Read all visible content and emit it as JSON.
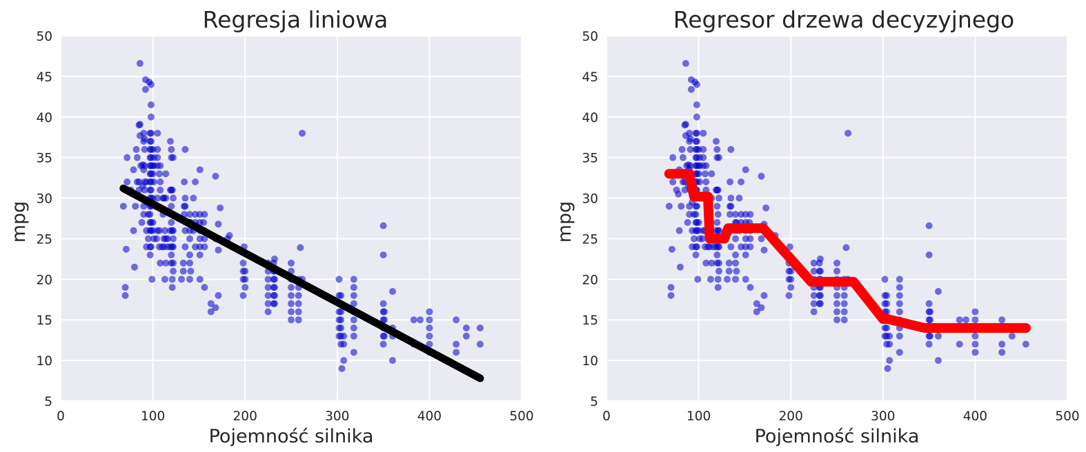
{
  "chart_data": [
    {
      "type": "scatter",
      "title": "Regresja liniowa",
      "xlabel": "Pojemność silnika",
      "ylabel": "mpg",
      "xlim": [
        0,
        500
      ],
      "ylim": [
        5,
        50
      ],
      "xticks": [
        "0",
        "100",
        "200",
        "300",
        "400",
        "500"
      ],
      "yticks": [
        "5",
        "10",
        "15",
        "20",
        "25",
        "30",
        "35",
        "40",
        "45",
        "50"
      ],
      "grid": true,
      "point_color": "#0000cc",
      "fit_color": "#000000",
      "fit": {
        "x": [
          68,
          455
        ],
        "y": [
          31.2,
          7.8
        ]
      }
    },
    {
      "type": "scatter",
      "title": "Regresor drzewa decyzyjnego",
      "xlabel": "Pojemność silnika",
      "ylabel": "mpg",
      "xlim": [
        0,
        500
      ],
      "ylim": [
        5,
        50
      ],
      "xticks": [
        "0",
        "100",
        "200",
        "300",
        "400",
        "500"
      ],
      "yticks": [
        "5",
        "10",
        "15",
        "20",
        "25",
        "30",
        "35",
        "40",
        "45",
        "50"
      ],
      "grid": true,
      "point_color": "#0000cc",
      "fit_color": "#ff0000",
      "fit": {
        "x": [
          68,
          90,
          95,
          110,
          112,
          128,
          132,
          165,
          170,
          222,
          228,
          262,
          268,
          300,
          305,
          345,
          350,
          455
        ],
        "y": [
          33,
          33,
          30.2,
          30.2,
          25,
          25,
          26.3,
          26.3,
          26.3,
          19.7,
          19.7,
          19.7,
          19.7,
          15.1,
          15.1,
          14,
          14,
          14
        ]
      }
    }
  ],
  "points": [
    [
      68,
      29
    ],
    [
      70,
      18
    ],
    [
      70,
      19
    ],
    [
      71,
      23.7
    ],
    [
      72,
      32
    ],
    [
      72,
      35
    ],
    [
      76,
      31
    ],
    [
      78,
      30.5
    ],
    [
      79,
      26
    ],
    [
      79,
      33.5
    ],
    [
      80,
      21.5
    ],
    [
      81,
      29
    ],
    [
      82,
      36
    ],
    [
      83,
      35
    ],
    [
      83,
      32
    ],
    [
      85,
      39
    ],
    [
      85,
      32
    ],
    [
      85,
      31
    ],
    [
      86,
      46.6
    ],
    [
      86,
      39.1
    ],
    [
      86,
      37.7
    ],
    [
      87,
      34
    ],
    [
      88,
      27
    ],
    [
      89,
      31.5
    ],
    [
      89,
      34.1
    ],
    [
      90,
      28
    ],
    [
      90,
      29
    ],
    [
      90,
      33.5
    ],
    [
      90,
      37
    ],
    [
      90,
      38
    ],
    [
      91,
      31
    ],
    [
      91,
      32
    ],
    [
      91,
      34
    ],
    [
      91,
      36
    ],
    [
      91,
      37.3
    ],
    [
      92,
      43.4
    ],
    [
      92,
      44.6
    ],
    [
      93,
      32
    ],
    [
      93,
      29.5
    ],
    [
      93,
      26
    ],
    [
      93,
      24
    ],
    [
      95,
      25
    ],
    [
      95,
      28
    ],
    [
      96,
      44.3
    ],
    [
      97,
      23
    ],
    [
      97,
      24
    ],
    [
      97,
      26
    ],
    [
      97,
      27
    ],
    [
      97,
      28
    ],
    [
      97,
      29
    ],
    [
      97,
      30
    ],
    [
      97,
      31
    ],
    [
      97,
      32
    ],
    [
      97,
      33
    ],
    [
      97,
      34
    ],
    [
      97,
      35
    ],
    [
      97,
      36
    ],
    [
      97,
      37
    ],
    [
      97,
      38
    ],
    [
      98,
      29
    ],
    [
      98,
      30
    ],
    [
      98,
      31
    ],
    [
      98,
      32
    ],
    [
      98,
      33
    ],
    [
      98,
      34
    ],
    [
      98,
      35
    ],
    [
      98,
      36
    ],
    [
      98,
      37
    ],
    [
      98,
      38
    ],
    [
      98,
      40
    ],
    [
      98,
      41.5
    ],
    [
      98,
      44
    ],
    [
      98,
      27
    ],
    [
      98,
      26
    ],
    [
      98,
      24
    ],
    [
      99,
      20
    ],
    [
      100,
      26
    ],
    [
      100,
      27
    ],
    [
      100,
      30
    ],
    [
      100,
      33
    ],
    [
      100,
      34
    ],
    [
      100,
      36
    ],
    [
      101,
      25
    ],
    [
      101,
      32
    ],
    [
      101,
      34
    ],
    [
      101,
      35
    ],
    [
      104,
      25
    ],
    [
      105,
      26
    ],
    [
      105,
      30
    ],
    [
      105,
      34
    ],
    [
      105,
      38
    ],
    [
      105,
      35
    ],
    [
      105,
      36
    ],
    [
      107,
      24
    ],
    [
      107,
      26
    ],
    [
      107,
      33
    ],
    [
      108,
      31
    ],
    [
      108,
      32
    ],
    [
      108,
      34
    ],
    [
      108,
      22
    ],
    [
      110,
      24
    ],
    [
      111,
      30
    ],
    [
      111,
      28
    ],
    [
      112,
      30
    ],
    [
      112,
      25
    ],
    [
      112,
      24
    ],
    [
      113,
      26
    ],
    [
      113,
      20
    ],
    [
      114,
      22
    ],
    [
      114,
      25
    ],
    [
      114,
      30
    ],
    [
      114,
      33
    ],
    [
      116,
      25
    ],
    [
      116,
      24
    ],
    [
      119,
      24
    ],
    [
      119,
      26
    ],
    [
      119,
      31
    ],
    [
      119,
      37
    ],
    [
      120,
      22
    ],
    [
      120,
      23
    ],
    [
      120,
      27
    ],
    [
      120,
      29
    ],
    [
      120,
      31
    ],
    [
      120,
      35
    ],
    [
      120,
      36
    ],
    [
      121,
      19
    ],
    [
      121,
      20
    ],
    [
      121,
      26
    ],
    [
      121,
      24
    ],
    [
      121,
      28
    ],
    [
      121,
      31
    ],
    [
      122,
      25
    ],
    [
      122,
      21
    ],
    [
      122,
      22
    ],
    [
      122,
      24
    ],
    [
      122,
      26
    ],
    [
      122,
      30
    ],
    [
      122,
      35
    ],
    [
      131,
      20
    ],
    [
      133,
      21
    ],
    [
      133,
      22
    ],
    [
      134,
      28
    ],
    [
      134,
      29
    ],
    [
      134,
      32
    ],
    [
      135,
      24
    ],
    [
      135,
      26
    ],
    [
      135,
      29
    ],
    [
      135,
      30
    ],
    [
      135,
      36
    ],
    [
      140,
      23
    ],
    [
      140,
      25
    ],
    [
      140,
      26
    ],
    [
      140,
      27
    ],
    [
      140,
      28
    ],
    [
      140,
      20
    ],
    [
      140,
      22
    ],
    [
      141,
      21
    ],
    [
      141,
      27
    ],
    [
      144,
      30
    ],
    [
      144,
      26
    ],
    [
      146,
      24
    ],
    [
      146,
      27
    ],
    [
      146,
      28
    ],
    [
      146,
      32
    ],
    [
      151,
      20
    ],
    [
      151,
      23
    ],
    [
      151,
      24
    ],
    [
      151,
      25
    ],
    [
      151,
      26
    ],
    [
      151,
      27
    ],
    [
      151,
      28
    ],
    [
      151,
      33.5
    ],
    [
      155,
      27
    ],
    [
      156,
      19
    ],
    [
      156,
      24
    ],
    [
      156,
      25
    ],
    [
      156,
      26
    ],
    [
      156,
      28
    ],
    [
      163,
      17
    ],
    [
      163,
      16
    ],
    [
      168,
      16.5
    ],
    [
      168,
      25
    ],
    [
      168,
      32.7
    ],
    [
      171,
      18
    ],
    [
      171,
      23.6
    ],
    [
      171,
      26.8
    ],
    [
      173,
      28.8
    ],
    [
      181,
      25
    ],
    [
      183,
      25.4
    ],
    [
      198,
      18
    ],
    [
      198,
      20
    ],
    [
      198,
      21
    ],
    [
      198,
      22
    ],
    [
      199,
      24
    ],
    [
      200,
      19
    ],
    [
      200,
      20
    ],
    [
      200,
      21
    ],
    [
      225,
      16
    ],
    [
      225,
      17
    ],
    [
      225,
      18
    ],
    [
      225,
      19
    ],
    [
      225,
      20
    ],
    [
      225,
      21
    ],
    [
      225,
      22
    ],
    [
      231,
      17
    ],
    [
      231,
      18
    ],
    [
      231,
      19
    ],
    [
      231,
      20
    ],
    [
      231,
      21
    ],
    [
      231,
      22
    ],
    [
      232,
      17
    ],
    [
      232,
      18
    ],
    [
      232,
      19
    ],
    [
      232,
      20
    ],
    [
      232,
      21
    ],
    [
      232,
      22.5
    ],
    [
      250,
      15
    ],
    [
      250,
      16
    ],
    [
      250,
      17
    ],
    [
      250,
      18
    ],
    [
      250,
      19
    ],
    [
      250,
      20
    ],
    [
      250,
      21
    ],
    [
      250,
      22
    ],
    [
      258,
      15
    ],
    [
      258,
      16
    ],
    [
      258,
      17
    ],
    [
      258,
      18
    ],
    [
      258,
      19
    ],
    [
      258,
      20
    ],
    [
      260,
      23.9
    ],
    [
      262,
      38
    ],
    [
      262,
      20
    ],
    [
      302,
      13
    ],
    [
      302,
      14
    ],
    [
      302,
      15
    ],
    [
      302,
      16
    ],
    [
      302,
      17
    ],
    [
      302,
      18
    ],
    [
      302,
      20
    ],
    [
      304,
      12
    ],
    [
      304,
      13
    ],
    [
      304,
      14
    ],
    [
      304,
      15
    ],
    [
      304,
      16
    ],
    [
      304,
      17
    ],
    [
      304,
      18
    ],
    [
      305,
      9
    ],
    [
      307,
      10
    ],
    [
      307,
      12
    ],
    [
      307,
      13
    ],
    [
      318,
      11
    ],
    [
      318,
      13
    ],
    [
      318,
      14
    ],
    [
      318,
      15
    ],
    [
      318,
      16
    ],
    [
      318,
      17
    ],
    [
      318,
      18
    ],
    [
      318,
      19
    ],
    [
      318,
      20
    ],
    [
      350,
      12
    ],
    [
      350,
      13
    ],
    [
      350,
      14
    ],
    [
      350,
      15
    ],
    [
      350,
      16
    ],
    [
      350,
      17
    ],
    [
      350,
      23
    ],
    [
      350,
      26.6
    ],
    [
      351,
      13
    ],
    [
      351,
      14
    ],
    [
      351,
      15
    ],
    [
      351,
      16
    ],
    [
      360,
      10
    ],
    [
      360,
      13
    ],
    [
      360,
      14
    ],
    [
      360,
      18.5
    ],
    [
      383,
      12
    ],
    [
      383,
      15
    ],
    [
      390,
      15
    ],
    [
      400,
      11
    ],
    [
      400,
      12
    ],
    [
      400,
      13
    ],
    [
      400,
      14
    ],
    [
      400,
      15
    ],
    [
      400,
      16
    ],
    [
      429,
      11
    ],
    [
      429,
      12
    ],
    [
      429,
      15
    ],
    [
      440,
      13
    ],
    [
      440,
      14
    ],
    [
      455,
      12
    ],
    [
      455,
      14
    ]
  ]
}
